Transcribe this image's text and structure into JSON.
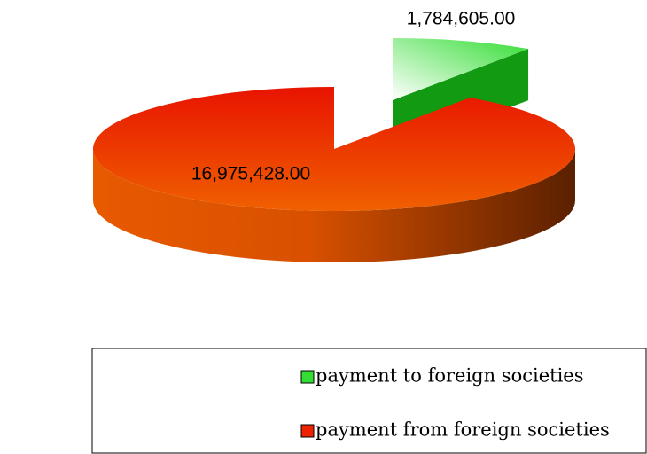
{
  "chart_data": {
    "type": "pie",
    "categories": [
      "payment to foreign societies",
      "payment from foreign societies"
    ],
    "values": [
      1784605,
      16975428
    ],
    "value_labels": [
      "1,784,605.00",
      "16,975,428.00"
    ],
    "colors": [
      "#33dd33",
      "#ee2200"
    ],
    "legend": "bottom"
  }
}
